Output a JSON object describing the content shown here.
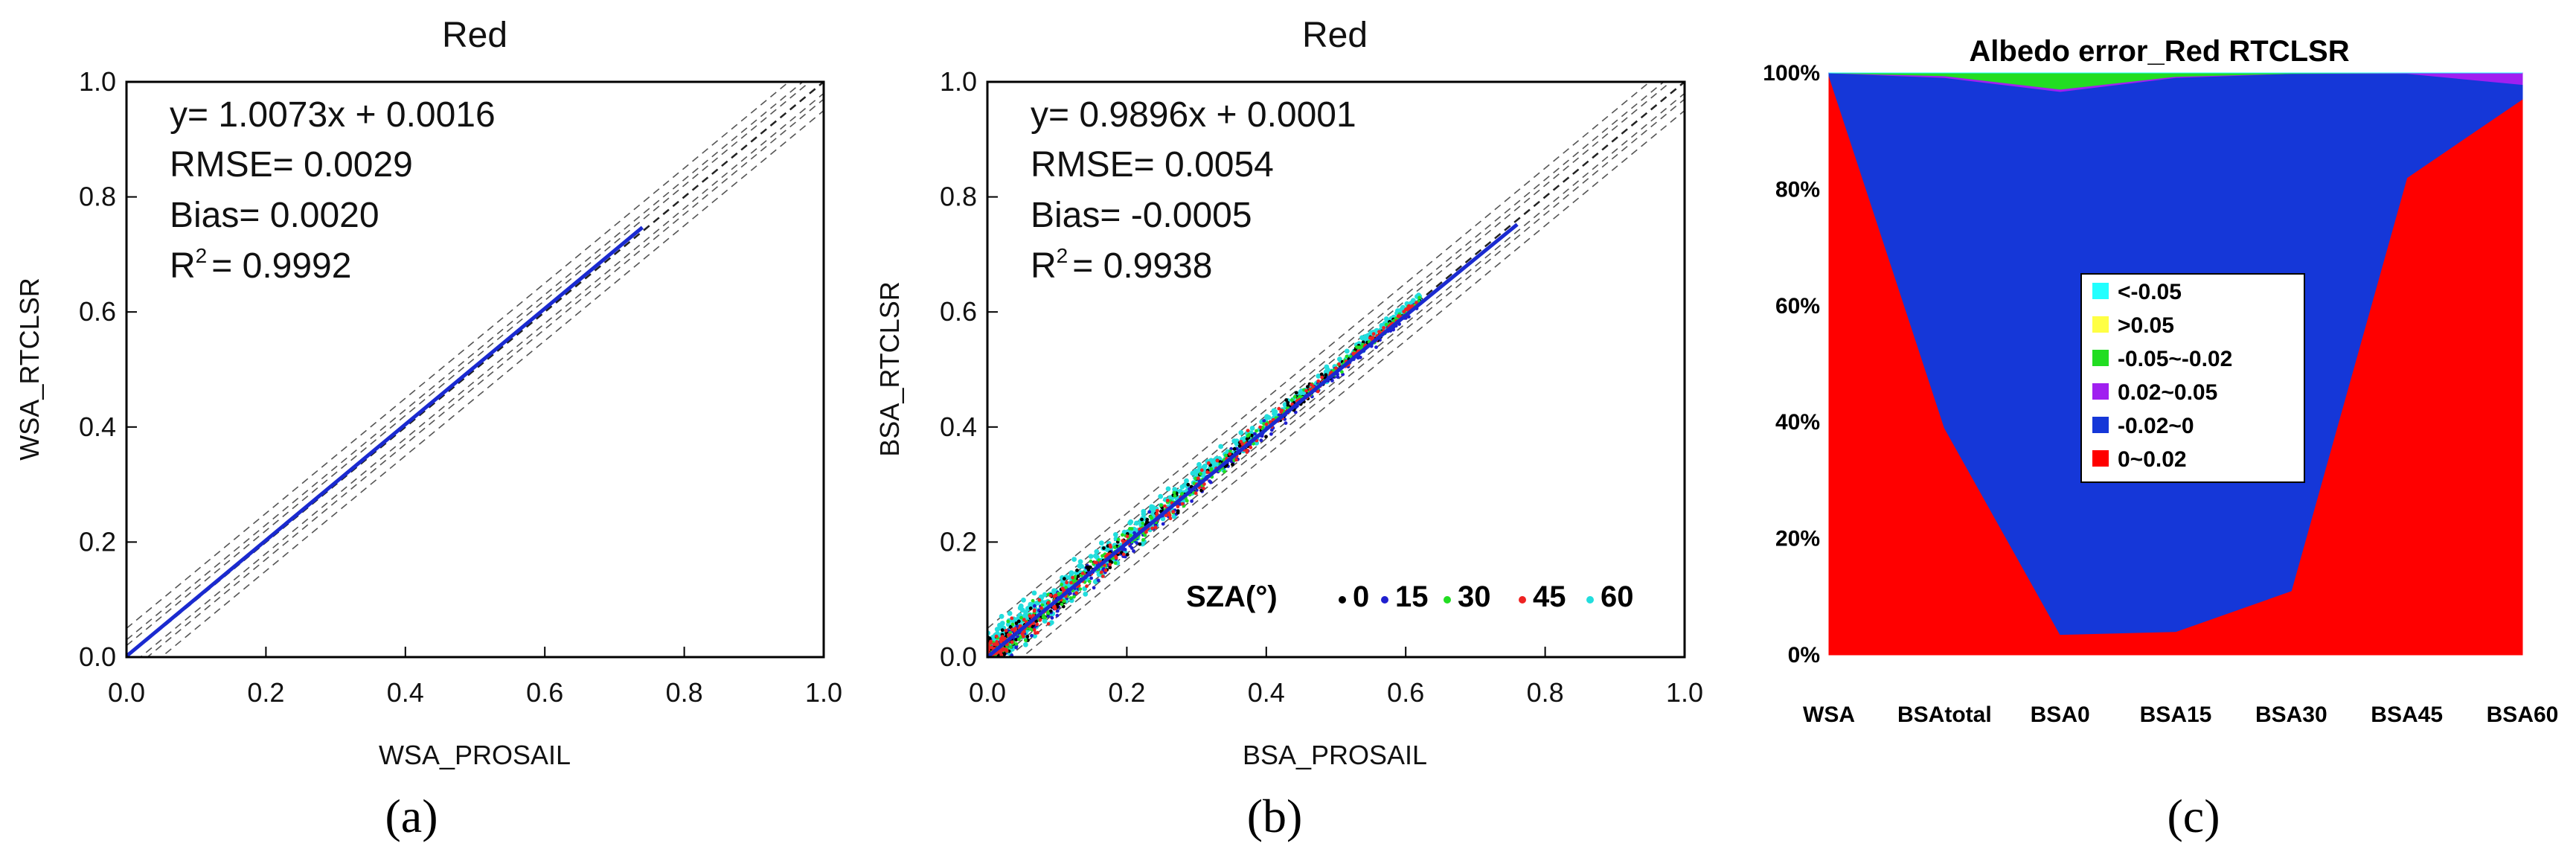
{
  "chart_data": [
    {
      "type": "scatter",
      "title": "Red",
      "xlabel": "WSA_PROSAIL",
      "ylabel": "WSA_RTCLSR",
      "xlim": [
        0.0,
        1.0
      ],
      "ylim": [
        0.0,
        1.0
      ],
      "xticks": [
        "0.0",
        "0.2",
        "0.4",
        "0.6",
        "0.8",
        "1.0"
      ],
      "yticks": [
        "0.0",
        "0.2",
        "0.4",
        "0.6",
        "0.8",
        "1.0"
      ],
      "fit_line": {
        "slope": 1.0073,
        "intercept": 0.0016,
        "x_range": [
          0.0,
          0.74
        ]
      },
      "stats": {
        "equation": "y=  1.0073x +  0.0016",
        "rmse": "RMSE=  0.0029",
        "bias": "Bias=  0.0020",
        "r2_prefix": "R",
        "r2_sup": "2",
        "r2_value": "=  0.9992"
      },
      "panel_label": "(a)"
    },
    {
      "type": "scatter",
      "title": "Red",
      "xlabel": "BSA_PROSAIL",
      "ylabel": "BSA_RTCLSR",
      "xlim": [
        0.0,
        1.0
      ],
      "ylim": [
        0.0,
        1.0
      ],
      "xticks": [
        "0.0",
        "0.2",
        "0.4",
        "0.6",
        "0.8",
        "1.0"
      ],
      "yticks": [
        "0.0",
        "0.2",
        "0.4",
        "0.6",
        "0.8",
        "1.0"
      ],
      "fit_line": {
        "slope": 0.9896,
        "intercept": 0.0001,
        "x_range": [
          0.0,
          0.76
        ]
      },
      "stats": {
        "equation": "y=  0.9896x +  0.0001",
        "rmse": "RMSE=  0.0054",
        "bias": "Bias= -0.0005",
        "r2_prefix": "R",
        "r2_sup": "2",
        "r2_value": "=  0.9938"
      },
      "legend": {
        "title": "SZA(°)",
        "items": [
          {
            "label": "0",
            "color": "#000000"
          },
          {
            "label": "15",
            "color": "#1f1fcf"
          },
          {
            "label": "30",
            "color": "#22dd22"
          },
          {
            "label": "45",
            "color": "#ee2222"
          },
          {
            "label": "60",
            "color": "#22dddd"
          }
        ]
      },
      "panel_label": "(b)"
    },
    {
      "type": "area",
      "stacked": true,
      "title": "Albedo error_Red  RTCLSR",
      "categories": [
        "WSA",
        "BSAtotal",
        "BSA0",
        "BSA15",
        "BSA30",
        "BSA45",
        "BSA60"
      ],
      "yticks": [
        "0%",
        "20%",
        "40%",
        "60%",
        "80%",
        "100%"
      ],
      "ylim": [
        0,
        100
      ],
      "series": [
        {
          "name": "0~0.02",
          "color": "#ff0000",
          "values": [
            99.5,
            39,
            3.5,
            4,
            11,
            82,
            95.5
          ]
        },
        {
          "name": "-0.02~0",
          "color": "#1537d8",
          "values": [
            0.5,
            60.2,
            93.3,
            95.2,
            88.9,
            17.9,
            2.5
          ]
        },
        {
          "name": "0.02~0.05",
          "color": "#a020f0",
          "values": [
            0,
            0.3,
            0.4,
            0.2,
            0,
            0.1,
            2
          ]
        },
        {
          "name": "-0.05~-0.02",
          "color": "#22dd22",
          "values": [
            0,
            0.5,
            2.8,
            0.6,
            0.1,
            0,
            0
          ]
        },
        {
          "name": ">0.05",
          "color": "#ffff44",
          "values": [
            0,
            0,
            0,
            0,
            0,
            0,
            0
          ]
        },
        {
          "name": "<-0.05",
          "color": "#22ffff",
          "values": [
            0,
            0,
            0,
            0,
            0,
            0,
            0
          ]
        }
      ],
      "legend_order": [
        "<-0.05",
        ">0.05",
        "-0.05~-0.02",
        "0.02~0.05",
        "-0.02~0",
        "0~0.02"
      ],
      "panel_label": "(c)"
    }
  ]
}
